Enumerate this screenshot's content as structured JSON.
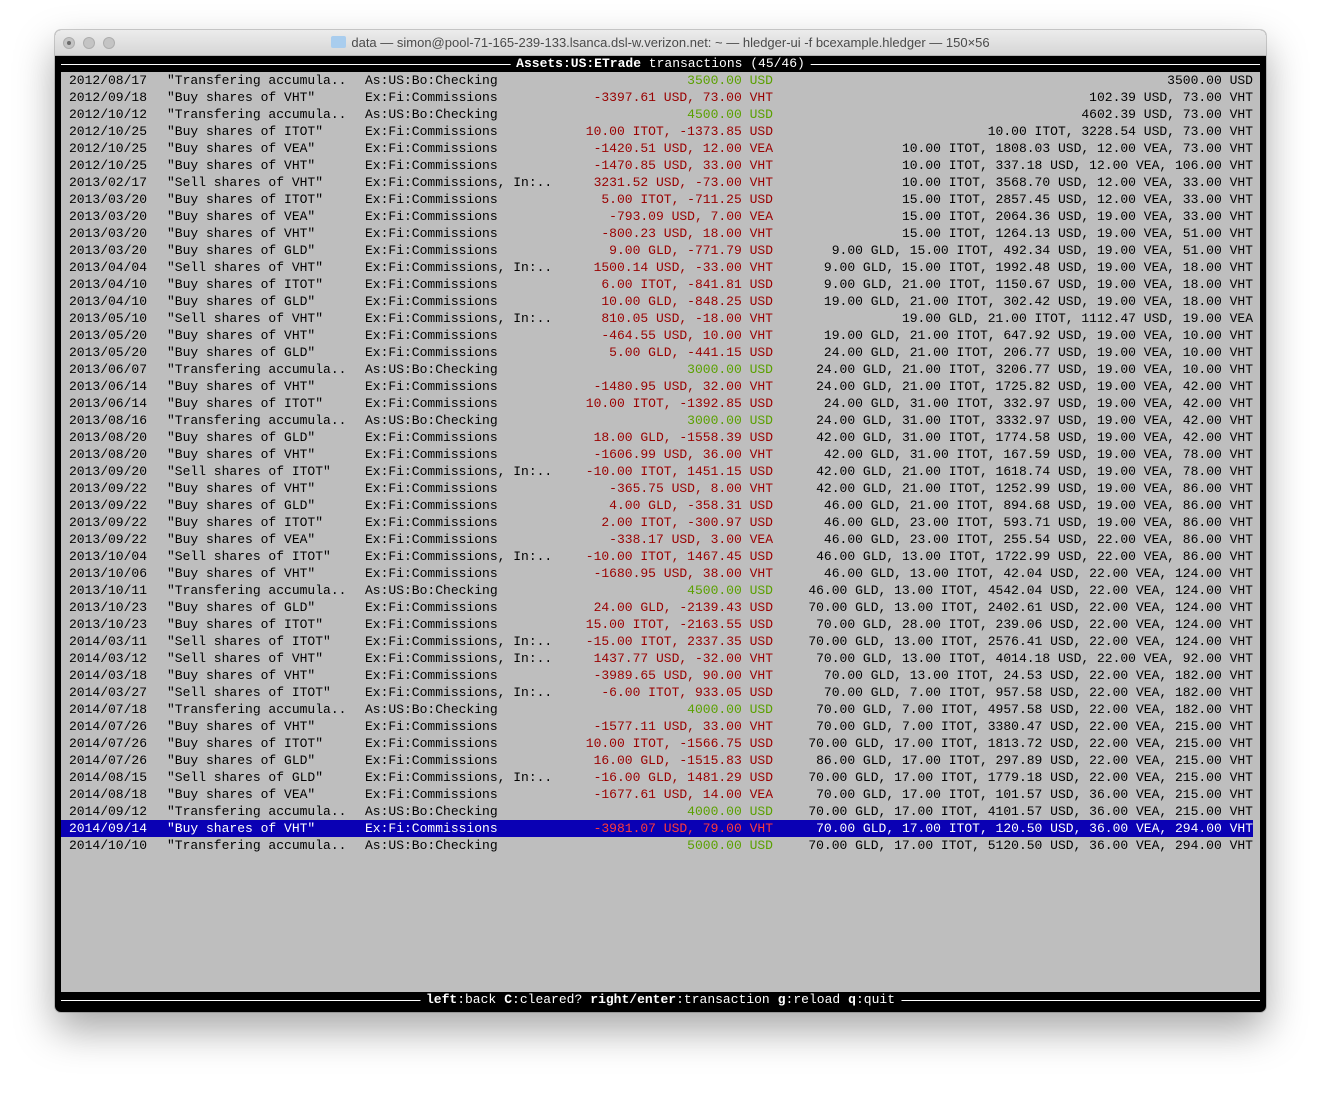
{
  "window": {
    "title": "data — simon@pool-71-165-239-133.lsanca.dsl-w.verizon.net: ~ — hledger-ui -f bcexample.hledger — 150×56"
  },
  "header": {
    "account": "Assets:US:ETrade",
    "suffix": " transactions (45/46)"
  },
  "colors": {
    "background": "#bebebe",
    "selected_background": "#0a00b4",
    "negative": "#990000",
    "negative_selected": "#ff3a3a",
    "positive": "#5aa000"
  },
  "selected_index": 44,
  "rows": [
    {
      "date": "2012/08/17",
      "desc": "\"Transfering accumula..",
      "account": "As:US:Bo:Checking",
      "amount": "3500.00 USD",
      "amount_color": "#5aa000",
      "balance": "3500.00 USD"
    },
    {
      "date": "2012/09/18",
      "desc": "\"Buy shares of VHT\"",
      "account": "Ex:Fi:Commissions",
      "amount": "-3397.61 USD, 73.00 VHT",
      "amount_color": "#990000",
      "balance": "102.39 USD, 73.00 VHT"
    },
    {
      "date": "2012/10/12",
      "desc": "\"Transfering accumula..",
      "account": "As:US:Bo:Checking",
      "amount": "4500.00 USD",
      "amount_color": "#5aa000",
      "balance": "4602.39 USD, 73.00 VHT"
    },
    {
      "date": "2012/10/25",
      "desc": "\"Buy shares of ITOT\"",
      "account": "Ex:Fi:Commissions",
      "amount": "10.00 ITOT, -1373.85 USD",
      "amount_color": "#990000",
      "balance": "10.00 ITOT, 3228.54 USD, 73.00 VHT"
    },
    {
      "date": "2012/10/25",
      "desc": "\"Buy shares of VEA\"",
      "account": "Ex:Fi:Commissions",
      "amount": "-1420.51 USD, 12.00 VEA",
      "amount_color": "#990000",
      "balance": "10.00 ITOT, 1808.03 USD, 12.00 VEA, 73.00 VHT"
    },
    {
      "date": "2012/10/25",
      "desc": "\"Buy shares of VHT\"",
      "account": "Ex:Fi:Commissions",
      "amount": "-1470.85 USD, 33.00 VHT",
      "amount_color": "#990000",
      "balance": "10.00 ITOT, 337.18 USD, 12.00 VEA, 106.00 VHT"
    },
    {
      "date": "2013/02/17",
      "desc": "\"Sell shares of VHT\"",
      "account": "Ex:Fi:Commissions, In:..",
      "amount": "3231.52 USD, -73.00 VHT",
      "amount_color": "#990000",
      "balance": "10.00 ITOT, 3568.70 USD, 12.00 VEA, 33.00 VHT"
    },
    {
      "date": "2013/03/20",
      "desc": "\"Buy shares of ITOT\"",
      "account": "Ex:Fi:Commissions",
      "amount": "5.00 ITOT, -711.25 USD",
      "amount_color": "#990000",
      "balance": "15.00 ITOT, 2857.45 USD, 12.00 VEA, 33.00 VHT"
    },
    {
      "date": "2013/03/20",
      "desc": "\"Buy shares of VEA\"",
      "account": "Ex:Fi:Commissions",
      "amount": "-793.09 USD, 7.00 VEA",
      "amount_color": "#990000",
      "balance": "15.00 ITOT, 2064.36 USD, 19.00 VEA, 33.00 VHT"
    },
    {
      "date": "2013/03/20",
      "desc": "\"Buy shares of VHT\"",
      "account": "Ex:Fi:Commissions",
      "amount": "-800.23 USD, 18.00 VHT",
      "amount_color": "#990000",
      "balance": "15.00 ITOT, 1264.13 USD, 19.00 VEA, 51.00 VHT"
    },
    {
      "date": "2013/03/20",
      "desc": "\"Buy shares of GLD\"",
      "account": "Ex:Fi:Commissions",
      "amount": "9.00 GLD, -771.79 USD",
      "amount_color": "#990000",
      "balance": "9.00 GLD, 15.00 ITOT, 492.34 USD, 19.00 VEA, 51.00 VHT"
    },
    {
      "date": "2013/04/04",
      "desc": "\"Sell shares of VHT\"",
      "account": "Ex:Fi:Commissions, In:..",
      "amount": "1500.14 USD, -33.00 VHT",
      "amount_color": "#990000",
      "balance": "9.00 GLD, 15.00 ITOT, 1992.48 USD, 19.00 VEA, 18.00 VHT"
    },
    {
      "date": "2013/04/10",
      "desc": "\"Buy shares of ITOT\"",
      "account": "Ex:Fi:Commissions",
      "amount": "6.00 ITOT, -841.81 USD",
      "amount_color": "#990000",
      "balance": "9.00 GLD, 21.00 ITOT, 1150.67 USD, 19.00 VEA, 18.00 VHT"
    },
    {
      "date": "2013/04/10",
      "desc": "\"Buy shares of GLD\"",
      "account": "Ex:Fi:Commissions",
      "amount": "10.00 GLD, -848.25 USD",
      "amount_color": "#990000",
      "balance": "19.00 GLD, 21.00 ITOT, 302.42 USD, 19.00 VEA, 18.00 VHT"
    },
    {
      "date": "2013/05/10",
      "desc": "\"Sell shares of VHT\"",
      "account": "Ex:Fi:Commissions, In:..",
      "amount": "810.05 USD, -18.00 VHT",
      "amount_color": "#990000",
      "balance": "19.00 GLD, 21.00 ITOT, 1112.47 USD, 19.00 VEA"
    },
    {
      "date": "2013/05/20",
      "desc": "\"Buy shares of VHT\"",
      "account": "Ex:Fi:Commissions",
      "amount": "-464.55 USD, 10.00 VHT",
      "amount_color": "#990000",
      "balance": "19.00 GLD, 21.00 ITOT, 647.92 USD, 19.00 VEA, 10.00 VHT"
    },
    {
      "date": "2013/05/20",
      "desc": "\"Buy shares of GLD\"",
      "account": "Ex:Fi:Commissions",
      "amount": "5.00 GLD, -441.15 USD",
      "amount_color": "#990000",
      "balance": "24.00 GLD, 21.00 ITOT, 206.77 USD, 19.00 VEA, 10.00 VHT"
    },
    {
      "date": "2013/06/07",
      "desc": "\"Transfering accumula..",
      "account": "As:US:Bo:Checking",
      "amount": "3000.00 USD",
      "amount_color": "#5aa000",
      "balance": "24.00 GLD, 21.00 ITOT, 3206.77 USD, 19.00 VEA, 10.00 VHT"
    },
    {
      "date": "2013/06/14",
      "desc": "\"Buy shares of VHT\"",
      "account": "Ex:Fi:Commissions",
      "amount": "-1480.95 USD, 32.00 VHT",
      "amount_color": "#990000",
      "balance": "24.00 GLD, 21.00 ITOT, 1725.82 USD, 19.00 VEA, 42.00 VHT"
    },
    {
      "date": "2013/06/14",
      "desc": "\"Buy shares of ITOT\"",
      "account": "Ex:Fi:Commissions",
      "amount": "10.00 ITOT, -1392.85 USD",
      "amount_color": "#990000",
      "balance": "24.00 GLD, 31.00 ITOT, 332.97 USD, 19.00 VEA, 42.00 VHT"
    },
    {
      "date": "2013/08/16",
      "desc": "\"Transfering accumula..",
      "account": "As:US:Bo:Checking",
      "amount": "3000.00 USD",
      "amount_color": "#5aa000",
      "balance": "24.00 GLD, 31.00 ITOT, 3332.97 USD, 19.00 VEA, 42.00 VHT"
    },
    {
      "date": "2013/08/20",
      "desc": "\"Buy shares of GLD\"",
      "account": "Ex:Fi:Commissions",
      "amount": "18.00 GLD, -1558.39 USD",
      "amount_color": "#990000",
      "balance": "42.00 GLD, 31.00 ITOT, 1774.58 USD, 19.00 VEA, 42.00 VHT"
    },
    {
      "date": "2013/08/20",
      "desc": "\"Buy shares of VHT\"",
      "account": "Ex:Fi:Commissions",
      "amount": "-1606.99 USD, 36.00 VHT",
      "amount_color": "#990000",
      "balance": "42.00 GLD, 31.00 ITOT, 167.59 USD, 19.00 VEA, 78.00 VHT"
    },
    {
      "date": "2013/09/20",
      "desc": "\"Sell shares of ITOT\"",
      "account": "Ex:Fi:Commissions, In:..",
      "amount": "-10.00 ITOT, 1451.15 USD",
      "amount_color": "#990000",
      "balance": "42.00 GLD, 21.00 ITOT, 1618.74 USD, 19.00 VEA, 78.00 VHT"
    },
    {
      "date": "2013/09/22",
      "desc": "\"Buy shares of VHT\"",
      "account": "Ex:Fi:Commissions",
      "amount": "-365.75 USD, 8.00 VHT",
      "amount_color": "#990000",
      "balance": "42.00 GLD, 21.00 ITOT, 1252.99 USD, 19.00 VEA, 86.00 VHT"
    },
    {
      "date": "2013/09/22",
      "desc": "\"Buy shares of GLD\"",
      "account": "Ex:Fi:Commissions",
      "amount": "4.00 GLD, -358.31 USD",
      "amount_color": "#990000",
      "balance": "46.00 GLD, 21.00 ITOT, 894.68 USD, 19.00 VEA, 86.00 VHT"
    },
    {
      "date": "2013/09/22",
      "desc": "\"Buy shares of ITOT\"",
      "account": "Ex:Fi:Commissions",
      "amount": "2.00 ITOT, -300.97 USD",
      "amount_color": "#990000",
      "balance": "46.00 GLD, 23.00 ITOT, 593.71 USD, 19.00 VEA, 86.00 VHT"
    },
    {
      "date": "2013/09/22",
      "desc": "\"Buy shares of VEA\"",
      "account": "Ex:Fi:Commissions",
      "amount": "-338.17 USD, 3.00 VEA",
      "amount_color": "#990000",
      "balance": "46.00 GLD, 23.00 ITOT, 255.54 USD, 22.00 VEA, 86.00 VHT"
    },
    {
      "date": "2013/10/04",
      "desc": "\"Sell shares of ITOT\"",
      "account": "Ex:Fi:Commissions, In:..",
      "amount": "-10.00 ITOT, 1467.45 USD",
      "amount_color": "#990000",
      "balance": "46.00 GLD, 13.00 ITOT, 1722.99 USD, 22.00 VEA, 86.00 VHT"
    },
    {
      "date": "2013/10/06",
      "desc": "\"Buy shares of VHT\"",
      "account": "Ex:Fi:Commissions",
      "amount": "-1680.95 USD, 38.00 VHT",
      "amount_color": "#990000",
      "balance": "46.00 GLD, 13.00 ITOT, 42.04 USD, 22.00 VEA, 124.00 VHT"
    },
    {
      "date": "2013/10/11",
      "desc": "\"Transfering accumula..",
      "account": "As:US:Bo:Checking",
      "amount": "4500.00 USD",
      "amount_color": "#5aa000",
      "balance": "46.00 GLD, 13.00 ITOT, 4542.04 USD, 22.00 VEA, 124.00 VHT"
    },
    {
      "date": "2013/10/23",
      "desc": "\"Buy shares of GLD\"",
      "account": "Ex:Fi:Commissions",
      "amount": "24.00 GLD, -2139.43 USD",
      "amount_color": "#990000",
      "balance": "70.00 GLD, 13.00 ITOT, 2402.61 USD, 22.00 VEA, 124.00 VHT"
    },
    {
      "date": "2013/10/23",
      "desc": "\"Buy shares of ITOT\"",
      "account": "Ex:Fi:Commissions",
      "amount": "15.00 ITOT, -2163.55 USD",
      "amount_color": "#990000",
      "balance": "70.00 GLD, 28.00 ITOT, 239.06 USD, 22.00 VEA, 124.00 VHT"
    },
    {
      "date": "2014/03/11",
      "desc": "\"Sell shares of ITOT\"",
      "account": "Ex:Fi:Commissions, In:..",
      "amount": "-15.00 ITOT, 2337.35 USD",
      "amount_color": "#990000",
      "balance": "70.00 GLD, 13.00 ITOT, 2576.41 USD, 22.00 VEA, 124.00 VHT"
    },
    {
      "date": "2014/03/12",
      "desc": "\"Sell shares of VHT\"",
      "account": "Ex:Fi:Commissions, In:..",
      "amount": "1437.77 USD, -32.00 VHT",
      "amount_color": "#990000",
      "balance": "70.00 GLD, 13.00 ITOT, 4014.18 USD, 22.00 VEA, 92.00 VHT"
    },
    {
      "date": "2014/03/18",
      "desc": "\"Buy shares of VHT\"",
      "account": "Ex:Fi:Commissions",
      "amount": "-3989.65 USD, 90.00 VHT",
      "amount_color": "#990000",
      "balance": "70.00 GLD, 13.00 ITOT, 24.53 USD, 22.00 VEA, 182.00 VHT"
    },
    {
      "date": "2014/03/27",
      "desc": "\"Sell shares of ITOT\"",
      "account": "Ex:Fi:Commissions, In:..",
      "amount": "-6.00 ITOT, 933.05 USD",
      "amount_color": "#990000",
      "balance": "70.00 GLD, 7.00 ITOT, 957.58 USD, 22.00 VEA, 182.00 VHT"
    },
    {
      "date": "2014/07/18",
      "desc": "\"Transfering accumula..",
      "account": "As:US:Bo:Checking",
      "amount": "4000.00 USD",
      "amount_color": "#5aa000",
      "balance": "70.00 GLD, 7.00 ITOT, 4957.58 USD, 22.00 VEA, 182.00 VHT"
    },
    {
      "date": "2014/07/26",
      "desc": "\"Buy shares of VHT\"",
      "account": "Ex:Fi:Commissions",
      "amount": "-1577.11 USD, 33.00 VHT",
      "amount_color": "#990000",
      "balance": "70.00 GLD, 7.00 ITOT, 3380.47 USD, 22.00 VEA, 215.00 VHT"
    },
    {
      "date": "2014/07/26",
      "desc": "\"Buy shares of ITOT\"",
      "account": "Ex:Fi:Commissions",
      "amount": "10.00 ITOT, -1566.75 USD",
      "amount_color": "#990000",
      "balance": "70.00 GLD, 17.00 ITOT, 1813.72 USD, 22.00 VEA, 215.00 VHT"
    },
    {
      "date": "2014/07/26",
      "desc": "\"Buy shares of GLD\"",
      "account": "Ex:Fi:Commissions",
      "amount": "16.00 GLD, -1515.83 USD",
      "amount_color": "#990000",
      "balance": "86.00 GLD, 17.00 ITOT, 297.89 USD, 22.00 VEA, 215.00 VHT"
    },
    {
      "date": "2014/08/15",
      "desc": "\"Sell shares of GLD\"",
      "account": "Ex:Fi:Commissions, In:..",
      "amount": "-16.00 GLD, 1481.29 USD",
      "amount_color": "#990000",
      "balance": "70.00 GLD, 17.00 ITOT, 1779.18 USD, 22.00 VEA, 215.00 VHT"
    },
    {
      "date": "2014/08/18",
      "desc": "\"Buy shares of VEA\"",
      "account": "Ex:Fi:Commissions",
      "amount": "-1677.61 USD, 14.00 VEA",
      "amount_color": "#990000",
      "balance": "70.00 GLD, 17.00 ITOT, 101.57 USD, 36.00 VEA, 215.00 VHT"
    },
    {
      "date": "2014/09/12",
      "desc": "\"Transfering accumula..",
      "account": "As:US:Bo:Checking",
      "amount": "4000.00 USD",
      "amount_color": "#5aa000",
      "balance": "70.00 GLD, 17.00 ITOT, 4101.57 USD, 36.00 VEA, 215.00 VHT"
    },
    {
      "date": "2014/09/14",
      "desc": "\"Buy shares of VHT\"",
      "account": "Ex:Fi:Commissions",
      "amount": "-3981.07 USD, 79.00 VHT",
      "amount_color": "#ff3a3a",
      "balance": "70.00 GLD, 17.00 ITOT, 120.50 USD, 36.00 VEA, 294.00 VHT"
    },
    {
      "date": "2014/10/10",
      "desc": "\"Transfering accumula..",
      "account": "As:US:Bo:Checking",
      "amount": "5000.00 USD",
      "amount_color": "#5aa000",
      "balance": "70.00 GLD, 17.00 ITOT, 5120.50 USD, 36.00 VEA, 294.00 VHT"
    }
  ],
  "footer": {
    "keys": [
      {
        "key": "left",
        "desc": "back"
      },
      {
        "key": "C",
        "desc": "cleared?"
      },
      {
        "key": "right/enter",
        "desc": "transaction"
      },
      {
        "key": "g",
        "desc": "reload"
      },
      {
        "key": "q",
        "desc": "quit"
      }
    ]
  }
}
